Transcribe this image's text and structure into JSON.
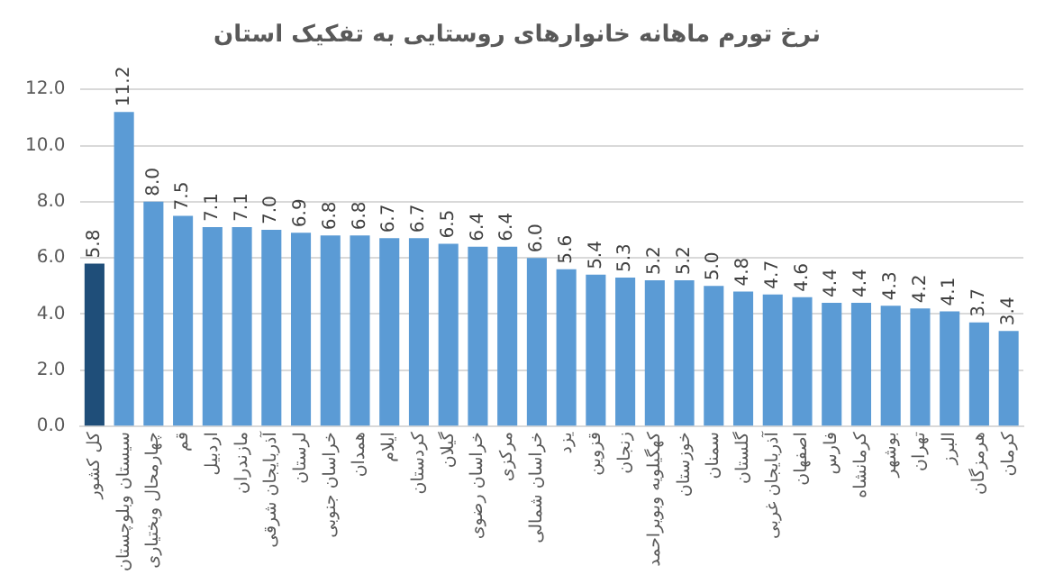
{
  "chart_data": {
    "type": "bar",
    "title": "نرخ تورم ماهانه خانوارهای روستایی به تفکیک استان",
    "categories": [
      "کل کشور",
      "سیستان وبلوچستان",
      "چهارمحال وبختیاری",
      "قم",
      "اردبیل",
      "مازندران",
      "آذربایجان شرقی",
      "لرستان",
      "خراسان جنوبی",
      "همدان",
      "ایلام",
      "کردستان",
      "گیلان",
      "خراسان رضوی",
      "مرکزی",
      "خراسان شمالی",
      "یزد",
      "قزوین",
      "زنجان",
      "کهگیلویه وبویراحمد",
      "خوزستان",
      "سمنان",
      "گلستان",
      "آذربایجان غربی",
      "اصفهان",
      "فارس",
      "کرمانشاه",
      "بوشهر",
      "تهران",
      "البرز",
      "هرمزگان",
      "کرمان"
    ],
    "values": [
      5.8,
      11.2,
      8.0,
      7.5,
      7.1,
      7.1,
      7.0,
      6.9,
      6.8,
      6.8,
      6.7,
      6.7,
      6.5,
      6.4,
      6.4,
      6.0,
      5.6,
      5.4,
      5.3,
      5.2,
      5.2,
      5.0,
      4.8,
      4.7,
      4.6,
      4.4,
      4.4,
      4.3,
      4.2,
      4.1,
      3.7,
      3.4
    ],
    "colors": [
      "#1f4e79",
      "#5b9bd5",
      "#5b9bd5",
      "#5b9bd5",
      "#5b9bd5",
      "#5b9bd5",
      "#5b9bd5",
      "#5b9bd5",
      "#5b9bd5",
      "#5b9bd5",
      "#5b9bd5",
      "#5b9bd5",
      "#5b9bd5",
      "#5b9bd5",
      "#5b9bd5",
      "#5b9bd5",
      "#5b9bd5",
      "#5b9bd5",
      "#5b9bd5",
      "#5b9bd5",
      "#5b9bd5",
      "#5b9bd5",
      "#5b9bd5",
      "#5b9bd5",
      "#5b9bd5",
      "#5b9bd5",
      "#5b9bd5",
      "#5b9bd5",
      "#5b9bd5",
      "#5b9bd5",
      "#5b9bd5",
      "#5b9bd5"
    ],
    "value_labels": [
      "5.8",
      "11.2",
      "8.0",
      "7.5",
      "7.1",
      "7.1",
      "7.0",
      "6.9",
      "6.8",
      "6.8",
      "6.7",
      "6.7",
      "6.5",
      "6.4",
      "6.4",
      "6.0",
      "5.6",
      "5.4",
      "5.3",
      "5.2",
      "5.2",
      "5.0",
      "4.8",
      "4.7",
      "4.6",
      "4.4",
      "4.4",
      "4.3",
      "4.2",
      "4.1",
      "3.7",
      "3.4"
    ],
    "ylim": [
      0,
      12
    ],
    "yticks": [
      {
        "value": 0,
        "label": "0.0"
      },
      {
        "value": 2,
        "label": "2.0"
      },
      {
        "value": 4,
        "label": "4.0"
      },
      {
        "value": 6,
        "label": "6.0"
      },
      {
        "value": 8,
        "label": "8.0"
      },
      {
        "value": 10,
        "label": "10.0"
      },
      {
        "value": 12,
        "label": "12.0"
      }
    ],
    "grid": "y",
    "legend": false
  }
}
